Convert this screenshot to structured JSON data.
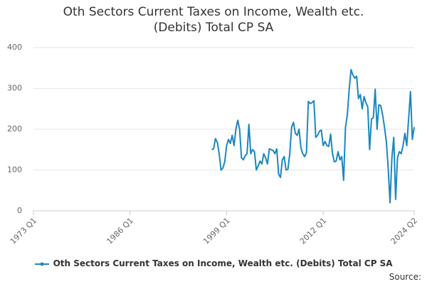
{
  "chart_data": {
    "type": "line",
    "title": "Oth Sectors Current Taxes on Income, Wealth etc. (Debits) Total CP SA",
    "source": "Source:",
    "categories": [
      "1973 Q1",
      null,
      null,
      null,
      null,
      null,
      null,
      null,
      null,
      null,
      null,
      null,
      null,
      null,
      null,
      null,
      null,
      null,
      null,
      null,
      null,
      null,
      null,
      null,
      null,
      null,
      null,
      null,
      null,
      null,
      null,
      null,
      null,
      null,
      null,
      null,
      null,
      null,
      null,
      null,
      null,
      null,
      null,
      null,
      null,
      null,
      null,
      null,
      null,
      null,
      null,
      null,
      "1986 Q1",
      null,
      null,
      null,
      null,
      null,
      null,
      null,
      null,
      null,
      null,
      null,
      null,
      null,
      null,
      null,
      null,
      null,
      null,
      null,
      null,
      null,
      null,
      null,
      null,
      null,
      null,
      null,
      null,
      null,
      null,
      null,
      null,
      null,
      null,
      null,
      null,
      null,
      null,
      null,
      null,
      null,
      null,
      null,
      null,
      null,
      null,
      null,
      null,
      null,
      null,
      null,
      "1999 Q1",
      null,
      null,
      null,
      null,
      null,
      null,
      null,
      null,
      null,
      null,
      null,
      null,
      null,
      null,
      null,
      null,
      null,
      null,
      null,
      null,
      null,
      null,
      null,
      null,
      null,
      null,
      null,
      null,
      null,
      null,
      null,
      null,
      null,
      null,
      null,
      null,
      null,
      null,
      null,
      null,
      null,
      null,
      null,
      null,
      null,
      null,
      null,
      null,
      null,
      null,
      null,
      "2012 Q1",
      null,
      null,
      null,
      null,
      null,
      null,
      null,
      null,
      null,
      null,
      null,
      null,
      null,
      null,
      null,
      null,
      null,
      null,
      null,
      null,
      null,
      null,
      null,
      null,
      null,
      null,
      null,
      null,
      null,
      null,
      null,
      null,
      null,
      null,
      null,
      null,
      null,
      null,
      null,
      null,
      null,
      null,
      null,
      null,
      null,
      null,
      null,
      null,
      "2024 Q2"
    ],
    "series": [
      {
        "name": "Oth Sectors Current Taxes on Income, Wealth etc. (Debits) Total CP SA",
        "color": "#1a87c0",
        "values": [
          null,
          null,
          null,
          null,
          null,
          null,
          null,
          null,
          null,
          null,
          null,
          null,
          null,
          null,
          null,
          null,
          null,
          null,
          null,
          null,
          null,
          null,
          null,
          null,
          null,
          null,
          null,
          null,
          null,
          null,
          null,
          null,
          null,
          null,
          null,
          null,
          null,
          null,
          null,
          null,
          null,
          null,
          null,
          null,
          null,
          null,
          null,
          null,
          null,
          null,
          null,
          null,
          null,
          null,
          null,
          null,
          null,
          null,
          null,
          null,
          null,
          null,
          null,
          null,
          null,
          null,
          null,
          null,
          null,
          null,
          null,
          null,
          null,
          null,
          null,
          null,
          null,
          null,
          null,
          null,
          null,
          null,
          null,
          null,
          null,
          null,
          null,
          null,
          null,
          null,
          null,
          null,
          null,
          null,
          null,
          null,
          150,
          152,
          177,
          168,
          140,
          100,
          105,
          120,
          160,
          175,
          165,
          185,
          160,
          200,
          222,
          200,
          130,
          125,
          135,
          140,
          212,
          140,
          150,
          145,
          100,
          110,
          122,
          115,
          140,
          130,
          115,
          152,
          150,
          148,
          140,
          152,
          90,
          82,
          125,
          133,
          100,
          102,
          140,
          205,
          217,
          190,
          185,
          200,
          155,
          140,
          133,
          142,
          268,
          263,
          265,
          270,
          180,
          185,
          195,
          198,
          160,
          170,
          160,
          158,
          188,
          140,
          120,
          122,
          145,
          125,
          133,
          75,
          205,
          235,
          298,
          346,
          333,
          325,
          330,
          275,
          285,
          250,
          280,
          265,
          255,
          150,
          225,
          228,
          298,
          200,
          260,
          258,
          235,
          205,
          170,
          105,
          20,
          130,
          180,
          28,
          130,
          145,
          140,
          160,
          190,
          160,
          225,
          292,
          175,
          205
        ]
      }
    ],
    "ylim": [
      0,
      400
    ],
    "yticks": [
      0,
      100,
      200,
      300,
      400
    ],
    "grid": true
  }
}
